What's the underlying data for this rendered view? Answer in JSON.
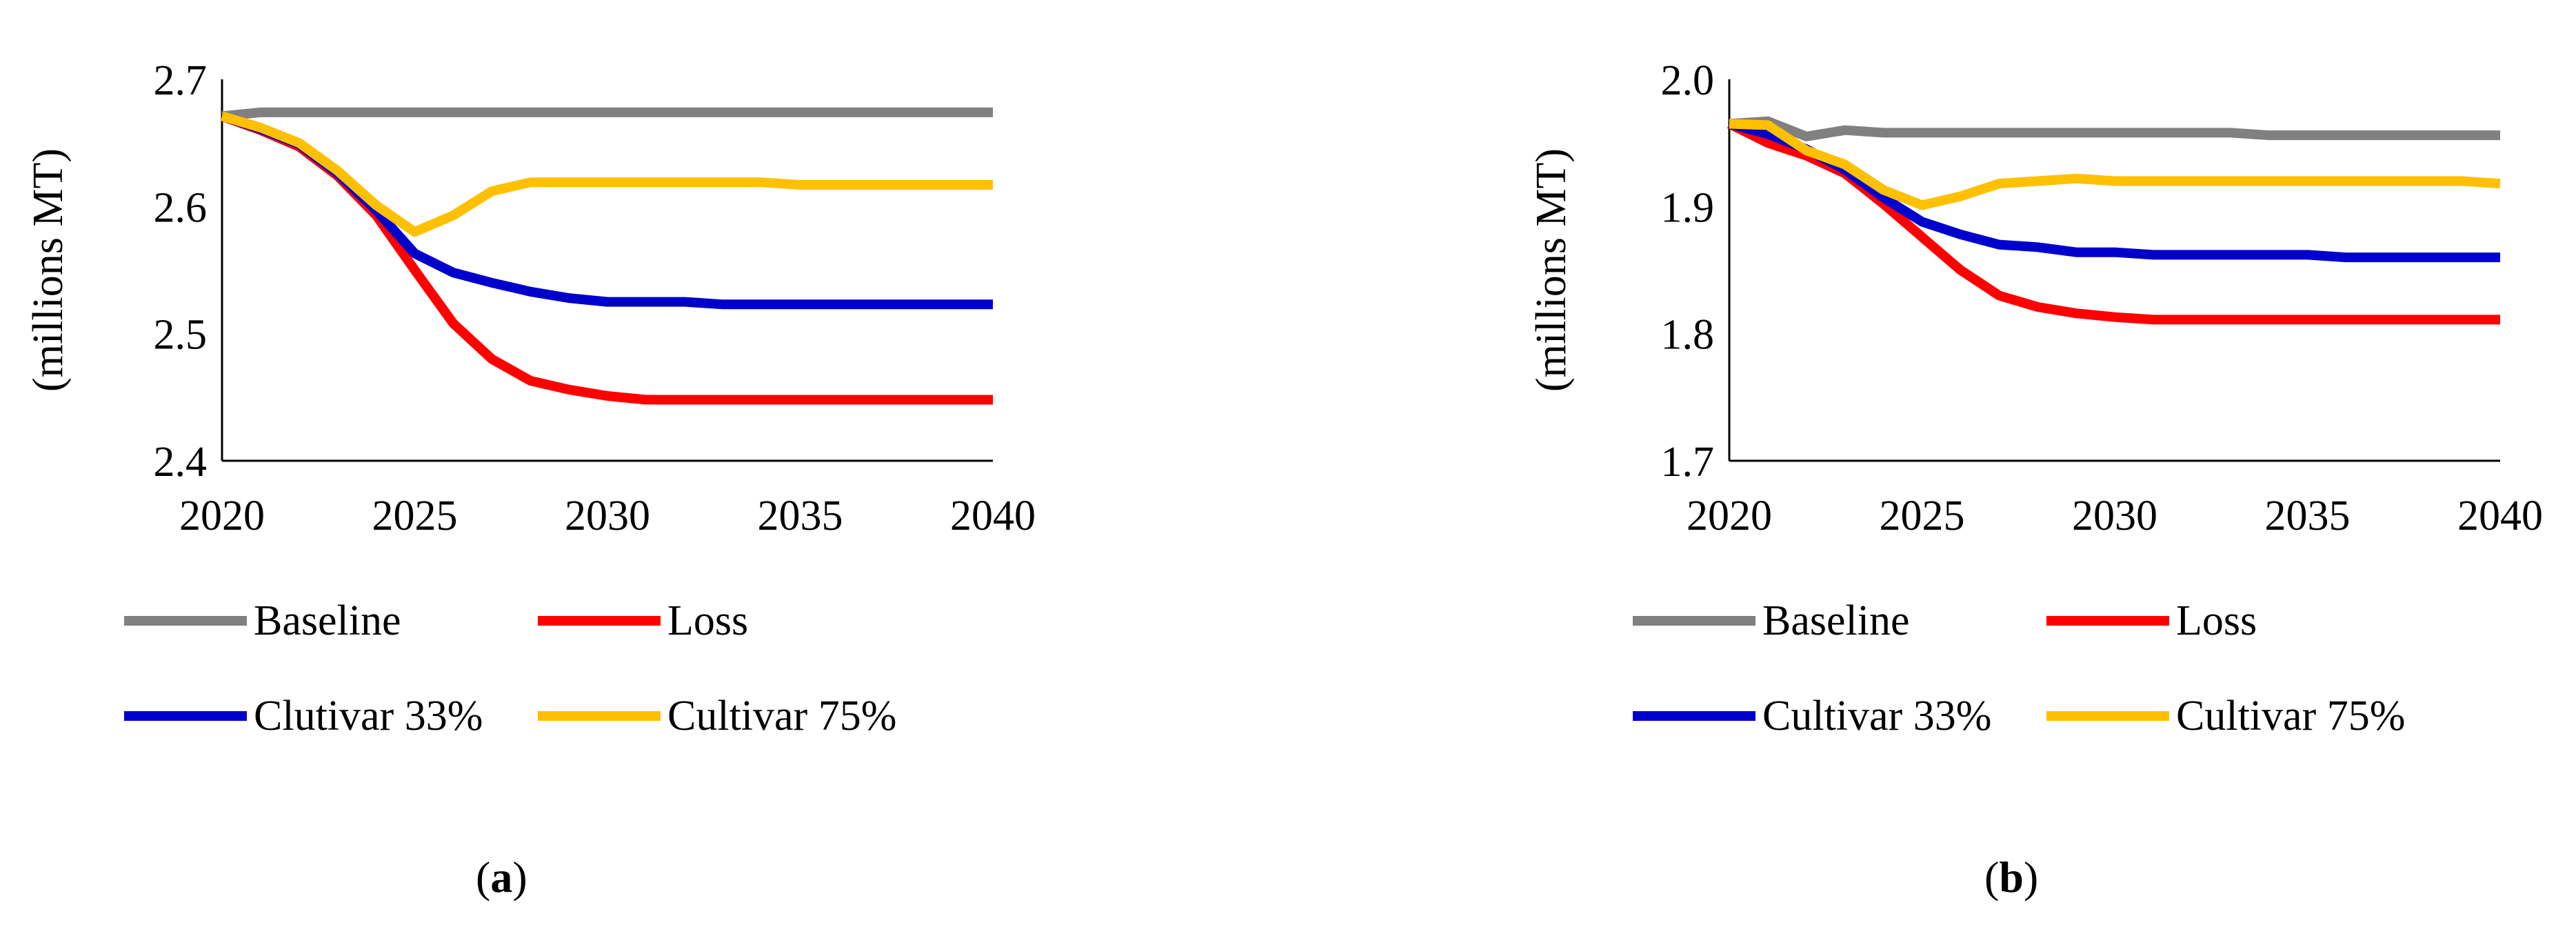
{
  "chart_data": [
    {
      "type": "line",
      "panel_label": "a",
      "title": "",
      "xlabel": "",
      "ylabel": "(millions MT)",
      "xlim": [
        2020,
        2040
      ],
      "ylim": [
        2.4,
        2.7
      ],
      "x_ticks": [
        "2020",
        "2025",
        "2030",
        "2035",
        "2040"
      ],
      "y_ticks": [
        "2.4",
        "2.5",
        "2.6",
        "2.7"
      ],
      "legend_position": "bottom",
      "grid": false,
      "x": [
        2020,
        2021,
        2022,
        2023,
        2024,
        2025,
        2026,
        2027,
        2028,
        2029,
        2030,
        2031,
        2032,
        2033,
        2034,
        2035,
        2036,
        2037,
        2038,
        2039,
        2040
      ],
      "series": [
        {
          "name": "Baseline",
          "color": "#808080",
          "values": [
            2.671,
            2.674,
            2.674,
            2.674,
            2.674,
            2.674,
            2.674,
            2.674,
            2.674,
            2.674,
            2.674,
            2.674,
            2.674,
            2.674,
            2.674,
            2.674,
            2.674,
            2.674,
            2.674,
            2.674,
            2.674
          ]
        },
        {
          "name": "Loss",
          "color": "#ff0000",
          "values": [
            2.671,
            2.66,
            2.647,
            2.624,
            2.593,
            2.55,
            2.508,
            2.48,
            2.463,
            2.456,
            2.451,
            2.448,
            2.448,
            2.448,
            2.448,
            2.448,
            2.448,
            2.448,
            2.448,
            2.448,
            2.448
          ]
        },
        {
          "name": "Clutivar 33%",
          "color": "#0000cc",
          "values": [
            2.671,
            2.661,
            2.649,
            2.626,
            2.597,
            2.563,
            2.548,
            2.54,
            2.533,
            2.528,
            2.525,
            2.525,
            2.525,
            2.523,
            2.523,
            2.523,
            2.523,
            2.523,
            2.523,
            2.523,
            2.523
          ]
        },
        {
          "name": "Cultivar 75%",
          "color": "#ffc000",
          "values": [
            2.671,
            2.662,
            2.65,
            2.628,
            2.601,
            2.58,
            2.593,
            2.612,
            2.619,
            2.619,
            2.619,
            2.619,
            2.619,
            2.619,
            2.619,
            2.617,
            2.617,
            2.617,
            2.617,
            2.617,
            2.617
          ]
        }
      ]
    },
    {
      "type": "line",
      "panel_label": "b",
      "title": "",
      "xlabel": "",
      "ylabel": "(millions MT)",
      "xlim": [
        2020,
        2040
      ],
      "ylim": [
        1.7,
        2.0
      ],
      "x_ticks": [
        "2020",
        "2025",
        "2030",
        "2035",
        "2040"
      ],
      "y_ticks": [
        "1.7",
        "1.8",
        "1.9",
        "2.0"
      ],
      "legend_position": "bottom",
      "grid": false,
      "x": [
        2020,
        2021,
        2022,
        2023,
        2024,
        2025,
        2026,
        2027,
        2028,
        2029,
        2030,
        2031,
        2032,
        2033,
        2034,
        2035,
        2036,
        2037,
        2038,
        2039,
        2040
      ],
      "series": [
        {
          "name": "Baseline",
          "color": "#808080",
          "values": [
            1.965,
            1.967,
            1.955,
            1.96,
            1.958,
            1.958,
            1.958,
            1.958,
            1.958,
            1.958,
            1.958,
            1.958,
            1.958,
            1.958,
            1.956,
            1.956,
            1.956,
            1.956,
            1.956,
            1.956,
            1.956
          ]
        },
        {
          "name": "Loss",
          "color": "#ff0000",
          "values": [
            1.965,
            1.95,
            1.94,
            1.926,
            1.902,
            1.876,
            1.85,
            1.83,
            1.821,
            1.816,
            1.813,
            1.811,
            1.811,
            1.811,
            1.811,
            1.811,
            1.811,
            1.811,
            1.811,
            1.811,
            1.811
          ]
        },
        {
          "name": "Cultivar 33%",
          "color": "#0000cc",
          "values": [
            1.965,
            1.957,
            1.945,
            1.929,
            1.907,
            1.888,
            1.878,
            1.87,
            1.868,
            1.864,
            1.864,
            1.862,
            1.862,
            1.862,
            1.862,
            1.862,
            1.86,
            1.86,
            1.86,
            1.86,
            1.86
          ]
        },
        {
          "name": "Cultivar 75%",
          "color": "#ffc000",
          "values": [
            1.965,
            1.964,
            1.944,
            1.933,
            1.913,
            1.901,
            1.908,
            1.918,
            1.92,
            1.922,
            1.92,
            1.92,
            1.92,
            1.92,
            1.92,
            1.92,
            1.92,
            1.92,
            1.92,
            1.92,
            1.918
          ]
        }
      ]
    }
  ]
}
